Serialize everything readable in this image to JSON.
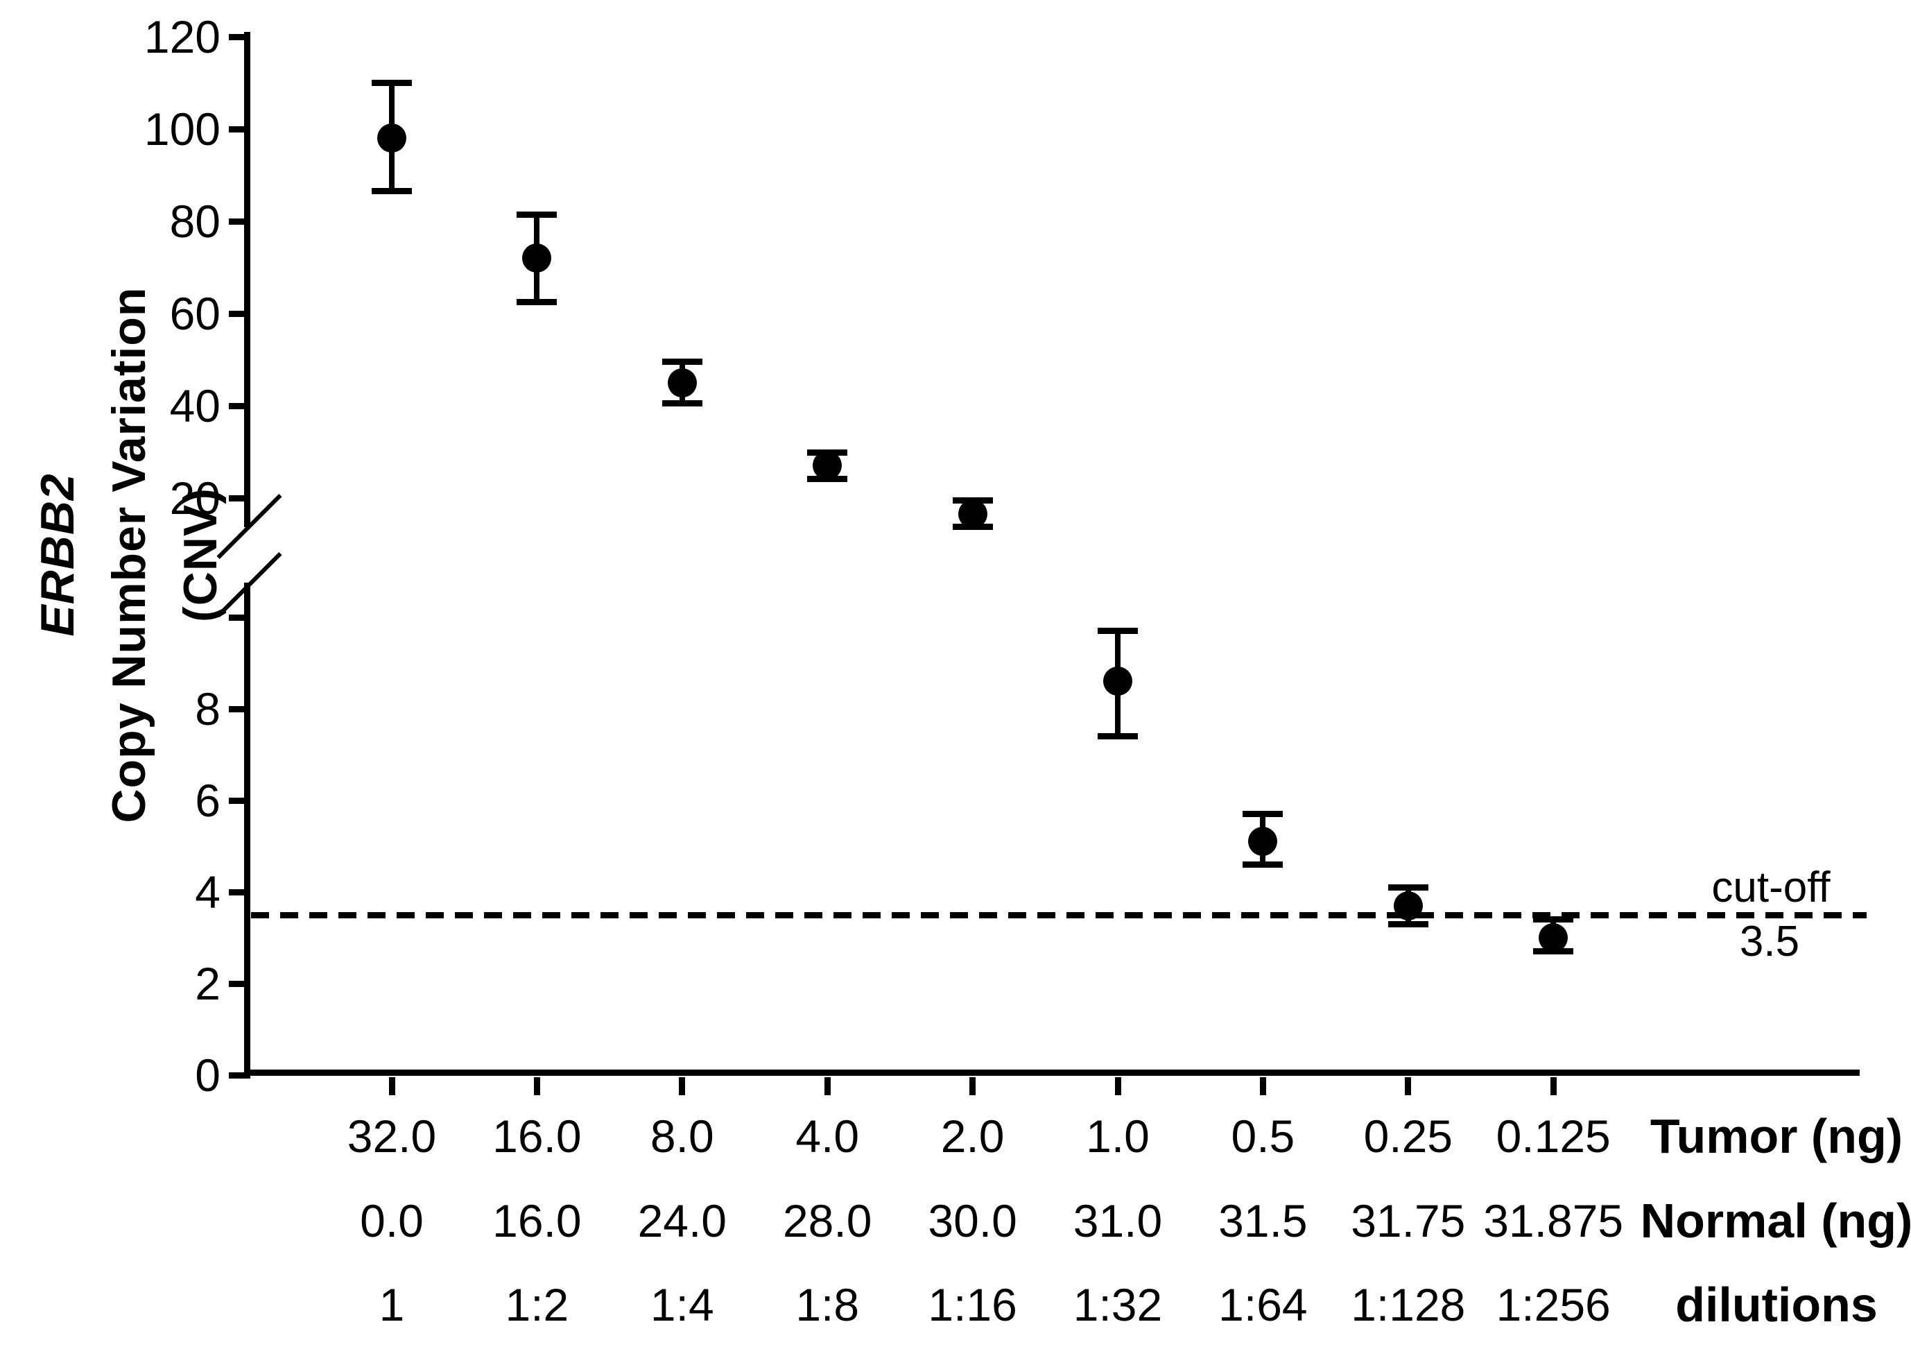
{
  "figure": {
    "background_color": "#ffffff",
    "ink_color": "#000000"
  },
  "y_axis": {
    "title_lines": [
      "ERBB2",
      "Copy Number Variation",
      "(CNV)"
    ],
    "upper_ticks": [
      {
        "value": 120,
        "label": "120"
      },
      {
        "value": 100,
        "label": "100"
      },
      {
        "value": 80,
        "label": "80"
      },
      {
        "value": 60,
        "label": "60"
      },
      {
        "value": 40,
        "label": "40"
      },
      {
        "value": 20,
        "label": "20"
      }
    ],
    "lower_ticks": [
      {
        "value": 10,
        "label": ""
      },
      {
        "value": 8,
        "label": "8"
      },
      {
        "value": 6,
        "label": "6"
      },
      {
        "value": 4,
        "label": "4"
      },
      {
        "value": 2,
        "label": "2"
      },
      {
        "value": 0,
        "label": "0"
      }
    ],
    "axis_break_between": [
      10,
      20
    ]
  },
  "cutoff": {
    "label": "cut-off",
    "value_label": "3.5",
    "value": 3.5
  },
  "x_axis": {
    "rows": [
      {
        "title": "Tumor (ng)",
        "values": [
          "32.0",
          "16.0",
          "8.0",
          "4.0",
          "2.0",
          "1.0",
          "0.5",
          "0.25",
          "0.125"
        ]
      },
      {
        "title": "Normal (ng)",
        "values": [
          "0.0",
          "16.0",
          "24.0",
          "28.0",
          "30.0",
          "31.0",
          "31.5",
          "31.75",
          "31.875"
        ]
      },
      {
        "title": "dilutions",
        "values": [
          "1",
          "1:2",
          "1:4",
          "1:8",
          "1:16",
          "1:32",
          "1:64",
          "1:128",
          "1:256"
        ]
      }
    ]
  },
  "chart_data": {
    "type": "scatter",
    "title": "",
    "xlabel_rows": [
      "Tumor (ng)",
      "Normal (ng)",
      "dilutions"
    ],
    "ylabel": "ERBB2 Copy Number Variation (CNV)",
    "y_axis_break": {
      "lower_range": [
        0,
        10
      ],
      "upper_range": [
        20,
        120
      ]
    },
    "grid": false,
    "legend": false,
    "cutoff_line": {
      "value": 3.5,
      "style": "dashed",
      "label": "cut-off 3.5"
    },
    "marker": {
      "shape": "filled-circle",
      "color": "#000000",
      "error_bars": true
    },
    "series": [
      {
        "name": "ERBB2 CNV",
        "points": [
          {
            "tumor_ng": "32.0",
            "normal_ng": "0.0",
            "dilution": "1",
            "cnv": 98.0,
            "cnv_lo": 86.5,
            "cnv_hi": 110.0
          },
          {
            "tumor_ng": "16.0",
            "normal_ng": "16.0",
            "dilution": "1:2",
            "cnv": 72.0,
            "cnv_lo": 62.5,
            "cnv_hi": 81.5
          },
          {
            "tumor_ng": "8.0",
            "normal_ng": "24.0",
            "dilution": "1:4",
            "cnv": 45.0,
            "cnv_lo": 40.5,
            "cnv_hi": 49.5
          },
          {
            "tumor_ng": "4.0",
            "normal_ng": "28.0",
            "dilution": "1:8",
            "cnv": 27.0,
            "cnv_lo": 24.2,
            "cnv_hi": 29.8
          },
          {
            "tumor_ng": "2.0",
            "normal_ng": "30.0",
            "dilution": "1:16",
            "cnv": 16.6,
            "cnv_lo": 13.8,
            "cnv_hi": 19.4
          },
          {
            "tumor_ng": "1.0",
            "normal_ng": "31.0",
            "dilution": "1:32",
            "cnv": 8.6,
            "cnv_lo": 7.4,
            "cnv_hi": 9.7
          },
          {
            "tumor_ng": "0.5",
            "normal_ng": "31.5",
            "dilution": "1:64",
            "cnv": 5.1,
            "cnv_lo": 4.6,
            "cnv_hi": 5.7
          },
          {
            "tumor_ng": "0.25",
            "normal_ng": "31.75",
            "dilution": "1:128",
            "cnv": 3.7,
            "cnv_lo": 3.3,
            "cnv_hi": 4.1
          },
          {
            "tumor_ng": "0.125",
            "normal_ng": "31.875",
            "dilution": "1:256",
            "cnv": 3.0,
            "cnv_lo": 2.7,
            "cnv_hi": 3.4
          }
        ]
      }
    ]
  }
}
